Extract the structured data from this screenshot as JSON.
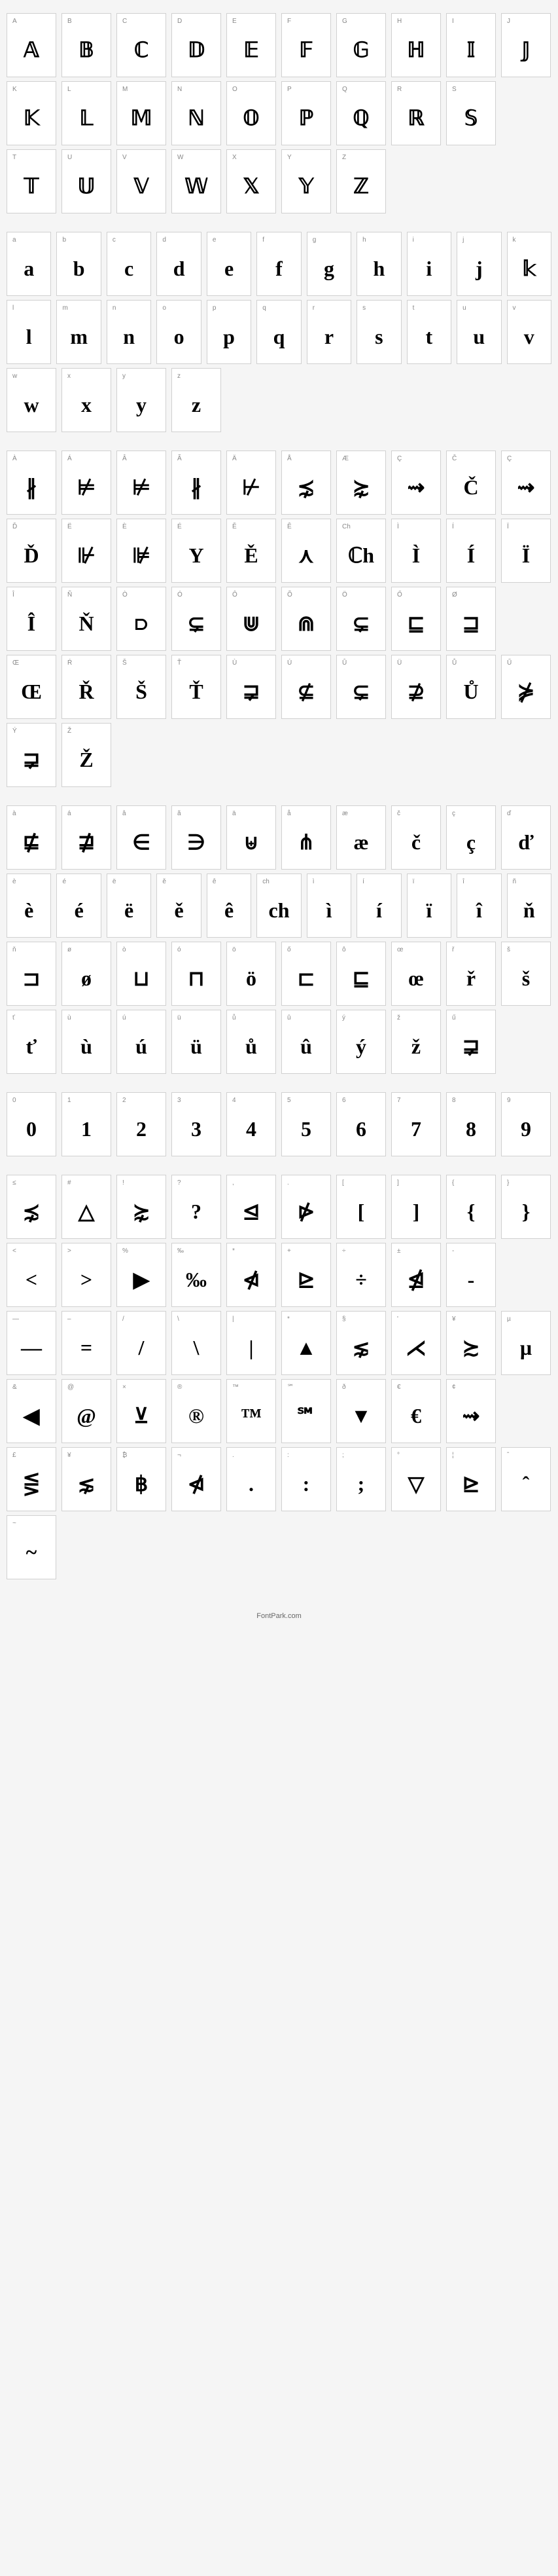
{
  "footer": "FontPark.com",
  "sections": [
    {
      "rows": [
        [
          {
            "label": "A",
            "glyph": "𝔸",
            "cls": "dbl"
          },
          {
            "label": "B",
            "glyph": "𝔹",
            "cls": "dbl"
          },
          {
            "label": "C",
            "glyph": "ℂ",
            "cls": "dbl"
          },
          {
            "label": "D",
            "glyph": "𝔻",
            "cls": "dbl"
          },
          {
            "label": "E",
            "glyph": "𝔼",
            "cls": "dbl"
          },
          {
            "label": "F",
            "glyph": "𝔽",
            "cls": "dbl"
          },
          {
            "label": "G",
            "glyph": "𝔾",
            "cls": "dbl"
          },
          {
            "label": "H",
            "glyph": "ℍ",
            "cls": "dbl"
          },
          {
            "label": "I",
            "glyph": "𝕀",
            "cls": "dbl"
          },
          {
            "label": "J",
            "glyph": "𝕁",
            "cls": "dbl"
          }
        ],
        [
          {
            "label": "K",
            "glyph": "𝕂",
            "cls": "dbl"
          },
          {
            "label": "L",
            "glyph": "𝕃",
            "cls": "dbl"
          },
          {
            "label": "M",
            "glyph": "𝕄",
            "cls": "dbl"
          },
          {
            "label": "N",
            "glyph": "ℕ",
            "cls": "dbl"
          },
          {
            "label": "O",
            "glyph": "𝕆",
            "cls": "dbl"
          },
          {
            "label": "P",
            "glyph": "ℙ",
            "cls": "dbl"
          },
          {
            "label": "Q",
            "glyph": "ℚ",
            "cls": "dbl"
          },
          {
            "label": "R",
            "glyph": "ℝ",
            "cls": "dbl"
          },
          {
            "label": "S",
            "glyph": "𝕊",
            "cls": "dbl"
          }
        ],
        [
          {
            "label": "T",
            "glyph": "𝕋",
            "cls": "dbl"
          },
          {
            "label": "U",
            "glyph": "𝕌",
            "cls": "dbl"
          },
          {
            "label": "V",
            "glyph": "𝕍",
            "cls": "dbl"
          },
          {
            "label": "W",
            "glyph": "𝕎",
            "cls": "dbl"
          },
          {
            "label": "X",
            "glyph": "𝕏",
            "cls": "dbl"
          },
          {
            "label": "Y",
            "glyph": "𝕐",
            "cls": "dbl"
          },
          {
            "label": "Z",
            "glyph": "ℤ",
            "cls": "dbl"
          }
        ]
      ]
    },
    {
      "rows": [
        [
          {
            "label": "a",
            "glyph": "a"
          },
          {
            "label": "b",
            "glyph": "b"
          },
          {
            "label": "c",
            "glyph": "c"
          },
          {
            "label": "d",
            "glyph": "d"
          },
          {
            "label": "e",
            "glyph": "e"
          },
          {
            "label": "f",
            "glyph": "f"
          },
          {
            "label": "g",
            "glyph": "g"
          },
          {
            "label": "h",
            "glyph": "h"
          },
          {
            "label": "i",
            "glyph": "i"
          },
          {
            "label": "j",
            "glyph": "j"
          },
          {
            "label": "k",
            "glyph": "𝕜",
            "cls": "dbl"
          }
        ],
        [
          {
            "label": "l",
            "glyph": "l"
          },
          {
            "label": "m",
            "glyph": "m"
          },
          {
            "label": "n",
            "glyph": "n"
          },
          {
            "label": "o",
            "glyph": "o"
          },
          {
            "label": "p",
            "glyph": "p"
          },
          {
            "label": "q",
            "glyph": "q"
          },
          {
            "label": "r",
            "glyph": "r"
          },
          {
            "label": "s",
            "glyph": "s"
          },
          {
            "label": "t",
            "glyph": "t"
          },
          {
            "label": "u",
            "glyph": "u"
          },
          {
            "label": "v",
            "glyph": "v"
          }
        ],
        [
          {
            "label": "w",
            "glyph": "w"
          },
          {
            "label": "x",
            "glyph": "x"
          },
          {
            "label": "y",
            "glyph": "y"
          },
          {
            "label": "z",
            "glyph": "z"
          }
        ]
      ]
    },
    {
      "rows": [
        [
          {
            "label": "À",
            "glyph": "∦"
          },
          {
            "label": "Á",
            "glyph": "⊭"
          },
          {
            "label": "Â",
            "glyph": "⊭"
          },
          {
            "label": "Ã",
            "glyph": "∦"
          },
          {
            "label": "Ä",
            "glyph": "⊬"
          },
          {
            "label": "Å",
            "glyph": "⋨"
          },
          {
            "label": "Æ",
            "glyph": "⋩"
          },
          {
            "label": "Ç",
            "glyph": "⇝"
          },
          {
            "label": "Č",
            "glyph": "Č"
          },
          {
            "label": "Ç",
            "glyph": "⇝"
          }
        ],
        [
          {
            "label": "Ď",
            "glyph": "Ď"
          },
          {
            "label": "Ë",
            "glyph": "⊮"
          },
          {
            "label": "È",
            "glyph": "⊯"
          },
          {
            "label": "É",
            "glyph": "Y"
          },
          {
            "label": "Ě",
            "glyph": "Ě"
          },
          {
            "label": "Ê",
            "glyph": "⋏"
          },
          {
            "label": "Ch",
            "glyph": "ℂh",
            "cls": "dbl"
          },
          {
            "label": "Ì",
            "glyph": "Ì"
          },
          {
            "label": "Í",
            "glyph": "Í"
          },
          {
            "label": "Ï",
            "glyph": "Ï"
          }
        ],
        [
          {
            "label": "Î",
            "glyph": "Î"
          },
          {
            "label": "Ñ",
            "glyph": "Ň"
          },
          {
            "label": "Ò",
            "glyph": "⫐"
          },
          {
            "label": "Ó",
            "glyph": "⊊"
          },
          {
            "label": "Ô",
            "glyph": "⋓"
          },
          {
            "label": "Õ",
            "glyph": "⋒"
          },
          {
            "label": "Ö",
            "glyph": "⊊"
          },
          {
            "label": "Ő",
            "glyph": "⊑"
          },
          {
            "label": "Ø",
            "glyph": "⊒"
          }
        ],
        [
          {
            "label": "Œ",
            "glyph": "Œ"
          },
          {
            "label": "Ŕ",
            "glyph": "Ř"
          },
          {
            "label": "Š",
            "glyph": "Š"
          },
          {
            "label": "Ť",
            "glyph": "Ť"
          },
          {
            "label": "Ù",
            "glyph": "⋥"
          },
          {
            "label": "Ú",
            "glyph": "⊈"
          },
          {
            "label": "Û",
            "glyph": "⊊"
          },
          {
            "label": "Ü",
            "glyph": "⊉"
          },
          {
            "label": "Ů",
            "glyph": "Ů"
          },
          {
            "label": "Ű",
            "glyph": "⋡"
          }
        ],
        [
          {
            "label": "Ý",
            "glyph": "⋥"
          },
          {
            "label": "Ž",
            "glyph": "Ž"
          }
        ]
      ]
    },
    {
      "rows": [
        [
          {
            "label": "à",
            "glyph": "⋢"
          },
          {
            "label": "á",
            "glyph": "⋣"
          },
          {
            "label": "â",
            "glyph": "∈"
          },
          {
            "label": "ã",
            "glyph": "∋"
          },
          {
            "label": "ä",
            "glyph": "⊎"
          },
          {
            "label": "å",
            "glyph": "⋔"
          },
          {
            "label": "æ",
            "glyph": "æ"
          },
          {
            "label": "č",
            "glyph": "č"
          },
          {
            "label": "ç",
            "glyph": "ç"
          },
          {
            "label": "ď",
            "glyph": "ď"
          }
        ],
        [
          {
            "label": "è",
            "glyph": "è"
          },
          {
            "label": "é",
            "glyph": "é"
          },
          {
            "label": "ë",
            "glyph": "ë"
          },
          {
            "label": "ě",
            "glyph": "ě"
          },
          {
            "label": "ê",
            "glyph": "ê"
          },
          {
            "label": "ch",
            "glyph": "ch"
          },
          {
            "label": "ì",
            "glyph": "ì"
          },
          {
            "label": "í",
            "glyph": "í"
          },
          {
            "label": "ï",
            "glyph": "ï"
          },
          {
            "label": "î",
            "glyph": "î"
          },
          {
            "label": "ñ",
            "glyph": "ň"
          }
        ],
        [
          {
            "label": "ň",
            "glyph": "⊐"
          },
          {
            "label": "ø",
            "glyph": "ø"
          },
          {
            "label": "ò",
            "glyph": "⊔"
          },
          {
            "label": "ó",
            "glyph": "⊓"
          },
          {
            "label": "ö",
            "glyph": "ö"
          },
          {
            "label": "ő",
            "glyph": "⊏"
          },
          {
            "label": "ô",
            "glyph": "⊑"
          },
          {
            "label": "œ",
            "glyph": "œ"
          },
          {
            "label": "ř",
            "glyph": "ř"
          },
          {
            "label": "š",
            "glyph": "š"
          }
        ],
        [
          {
            "label": "ť",
            "glyph": "ť"
          },
          {
            "label": "ù",
            "glyph": "ù"
          },
          {
            "label": "ú",
            "glyph": "ú"
          },
          {
            "label": "ü",
            "glyph": "ü"
          },
          {
            "label": "ů",
            "glyph": "ů"
          },
          {
            "label": "û",
            "glyph": "û"
          },
          {
            "label": "ý",
            "glyph": "ý"
          },
          {
            "label": "ž",
            "glyph": "ž"
          },
          {
            "label": "ű",
            "glyph": "⋥"
          }
        ]
      ]
    },
    {
      "rows": [
        [
          {
            "label": "0",
            "glyph": "0"
          },
          {
            "label": "1",
            "glyph": "1"
          },
          {
            "label": "2",
            "glyph": "2"
          },
          {
            "label": "3",
            "glyph": "3"
          },
          {
            "label": "4",
            "glyph": "4"
          },
          {
            "label": "5",
            "glyph": "5"
          },
          {
            "label": "6",
            "glyph": "6"
          },
          {
            "label": "7",
            "glyph": "7"
          },
          {
            "label": "8",
            "glyph": "8"
          },
          {
            "label": "9",
            "glyph": "9"
          }
        ]
      ]
    },
    {
      "rows": [
        [
          {
            "label": "≤",
            "glyph": "⋨"
          },
          {
            "label": "#",
            "glyph": "△"
          },
          {
            "label": "!",
            "glyph": "⋩"
          },
          {
            "label": "?",
            "glyph": "?"
          },
          {
            "label": ",",
            "glyph": "⊴"
          },
          {
            "label": ".",
            "glyph": "⋫"
          },
          {
            "label": "[",
            "glyph": "["
          },
          {
            "label": "]",
            "glyph": "]"
          },
          {
            "label": "{",
            "glyph": "{"
          },
          {
            "label": "}",
            "glyph": "}"
          }
        ],
        [
          {
            "label": "<",
            "glyph": "<"
          },
          {
            "label": ">",
            "glyph": ">"
          },
          {
            "label": "%",
            "glyph": "▶"
          },
          {
            "label": "‰",
            "glyph": "‰"
          },
          {
            "label": "*",
            "glyph": "⋪"
          },
          {
            "label": "+",
            "glyph": "⊵"
          },
          {
            "label": "÷",
            "glyph": "÷"
          },
          {
            "label": "±",
            "glyph": "⋬"
          },
          {
            "label": "-",
            "glyph": "-"
          }
        ],
        [
          {
            "label": "—",
            "glyph": "—"
          },
          {
            "label": "–",
            "glyph": "="
          },
          {
            "label": "/",
            "glyph": "/"
          },
          {
            "label": "\\",
            "glyph": "\\"
          },
          {
            "label": "|",
            "glyph": "|"
          },
          {
            "label": "*",
            "glyph": "▲"
          },
          {
            "label": "§",
            "glyph": "⋦"
          },
          {
            "label": "'",
            "glyph": "⋌"
          },
          {
            "label": "¥",
            "glyph": "≿"
          },
          {
            "label": "µ",
            "glyph": "µ"
          }
        ],
        [
          {
            "label": "&",
            "glyph": "◀"
          },
          {
            "label": "@",
            "glyph": "@"
          },
          {
            "label": "×",
            "glyph": "⊻"
          },
          {
            "label": "®",
            "glyph": "®"
          },
          {
            "label": "™",
            "glyph": "™"
          },
          {
            "label": "℠",
            "glyph": "℠"
          },
          {
            "label": "ð",
            "glyph": "▼"
          },
          {
            "label": "€",
            "glyph": "€"
          },
          {
            "label": "¢",
            "glyph": "⇝"
          }
        ],
        [
          {
            "label": "£",
            "glyph": "⋚"
          },
          {
            "label": "¥",
            "glyph": "⋦"
          },
          {
            "label": "₿",
            "glyph": "฿"
          },
          {
            "label": "¬",
            "glyph": "⋪"
          },
          {
            "label": ".",
            "glyph": "."
          },
          {
            "label": ":",
            "glyph": ":"
          },
          {
            "label": ";",
            "glyph": ";"
          },
          {
            "label": "°",
            "glyph": "▽"
          },
          {
            "label": "¦",
            "glyph": "⊵"
          },
          {
            "label": "ˆ",
            "glyph": "ˆ"
          }
        ],
        [
          {
            "label": "~",
            "glyph": "~"
          }
        ]
      ]
    }
  ]
}
